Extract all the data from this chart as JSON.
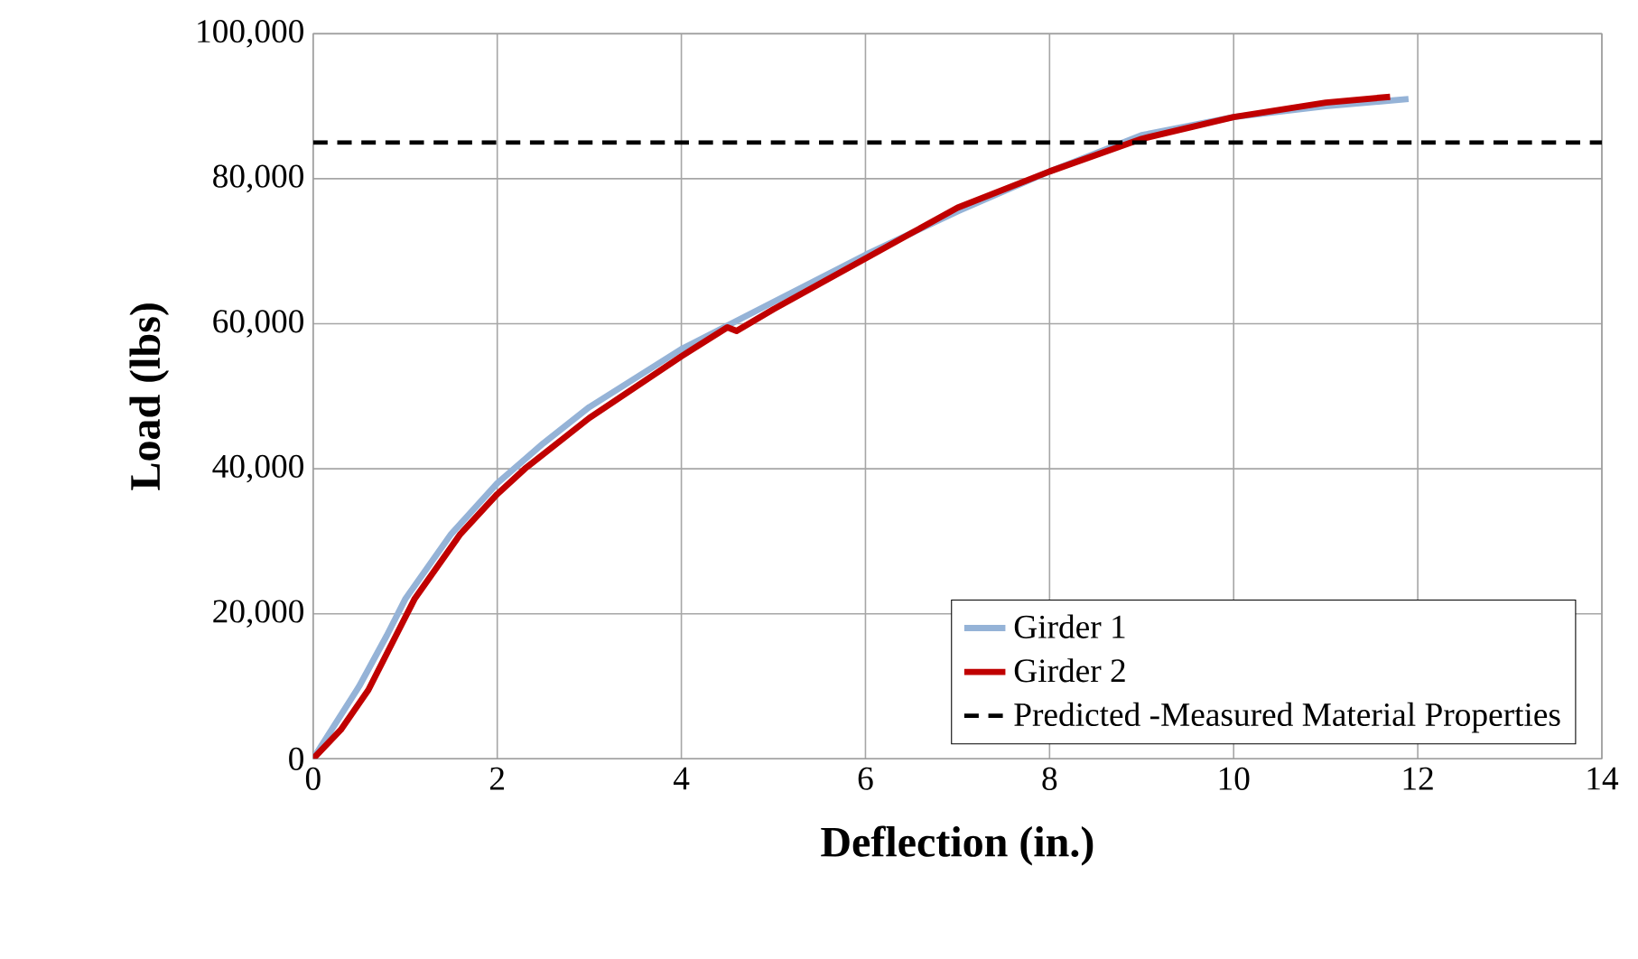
{
  "chart_data": {
    "type": "line",
    "xlabel": "Deflection (in.)",
    "ylabel": "Load (lbs)",
    "xlim": [
      0,
      14
    ],
    "xticks": [
      0,
      2,
      4,
      6,
      8,
      10,
      12,
      14
    ],
    "ylim": [
      0,
      100000
    ],
    "yticks": [
      0,
      {
        "value": 20000,
        "label": "20,000"
      },
      {
        "value": 40000,
        "label": "40,000"
      },
      {
        "value": 60000,
        "label": "60,000"
      },
      {
        "value": 80000,
        "label": "80,000"
      },
      {
        "value": 100000,
        "label": "100,000"
      }
    ],
    "grid": true,
    "legend": "bottom right",
    "marker": "none",
    "line_style": "solid",
    "series": [
      {
        "name": "Girder 1",
        "color": "#95b3d7",
        "x": [
          0,
          0.2,
          0.5,
          0.8,
          1,
          1.5,
          2,
          2.5,
          3,
          4,
          5,
          6,
          7,
          8,
          9,
          10,
          11,
          11.9
        ],
        "values": [
          0,
          4000,
          10000,
          17000,
          22000,
          31000,
          38000,
          43500,
          48500,
          56500,
          63000,
          69500,
          75500,
          81000,
          86000,
          88500,
          90000,
          91000
        ]
      },
      {
        "name": "Girder 2",
        "color": "#c00000",
        "x": [
          0,
          0.3,
          0.6,
          0.9,
          1.1,
          1.6,
          2,
          2.3,
          3,
          4,
          4.5,
          4.6,
          5,
          6,
          7,
          8,
          9,
          10,
          11,
          11.7
        ],
        "values": [
          0,
          4000,
          9500,
          17000,
          22000,
          31000,
          36500,
          40000,
          47000,
          55500,
          59500,
          59000,
          62000,
          69000,
          76000,
          81000,
          85500,
          88500,
          90500,
          91300
        ]
      }
    ],
    "ref_lines": [
      {
        "axis": "y",
        "value": 85000,
        "label": "Predicted -Measured Material Properties",
        "color": "#000000",
        "line_style": "dashed"
      }
    ]
  }
}
